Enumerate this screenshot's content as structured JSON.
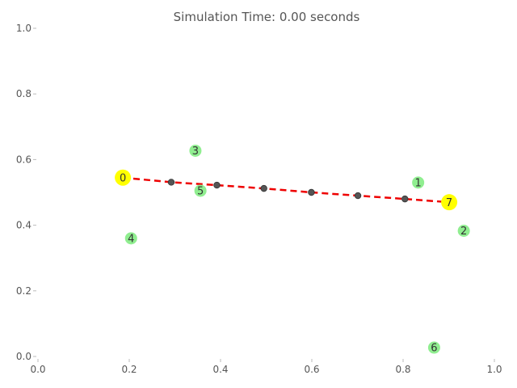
{
  "chart_data": {
    "type": "scatter",
    "title": "Simulation Time: 0.00 seconds",
    "xlabel": "",
    "ylabel": "",
    "xlim": [
      0.0,
      1.0
    ],
    "ylim": [
      0.0,
      1.0
    ],
    "x_ticks": [
      "0.0",
      "0.2",
      "0.4",
      "0.6",
      "0.8",
      "1.0"
    ],
    "y_ticks": [
      "0.0",
      "0.2",
      "0.4",
      "0.6",
      "0.8",
      "1.0"
    ],
    "grid": false,
    "nodes": [
      {
        "label": "0",
        "x": 0.186,
        "y": 0.545,
        "role": "endpoint"
      },
      {
        "label": "1",
        "x": 0.833,
        "y": 0.53,
        "role": "node"
      },
      {
        "label": "2",
        "x": 0.933,
        "y": 0.383,
        "role": "node"
      },
      {
        "label": "3",
        "x": 0.345,
        "y": 0.627,
        "role": "node"
      },
      {
        "label": "4",
        "x": 0.204,
        "y": 0.36,
        "role": "node"
      },
      {
        "label": "5",
        "x": 0.356,
        "y": 0.505,
        "role": "node"
      },
      {
        "label": "6",
        "x": 0.868,
        "y": 0.027,
        "role": "node"
      },
      {
        "label": "7",
        "x": 0.901,
        "y": 0.47,
        "role": "endpoint"
      }
    ],
    "path": {
      "style": "dashed",
      "from": "0",
      "to": "7",
      "waypoints": [
        {
          "x": 0.292,
          "y": 0.531
        },
        {
          "x": 0.392,
          "y": 0.522
        },
        {
          "x": 0.495,
          "y": 0.512
        },
        {
          "x": 0.599,
          "y": 0.5
        },
        {
          "x": 0.701,
          "y": 0.49
        },
        {
          "x": 0.804,
          "y": 0.48
        }
      ]
    },
    "colors": {
      "endpoint": "#ffff00",
      "node": "#90ee90",
      "path": "#ee0000",
      "waypoint": "#555555"
    }
  }
}
